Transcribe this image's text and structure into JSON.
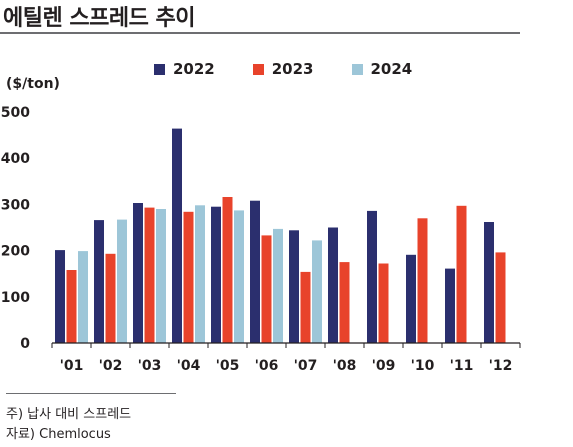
{
  "header": {
    "title": "에틸렌 스프레드 추이"
  },
  "chart_data": {
    "type": "bar",
    "ylabel": "($/ton)",
    "ylim": [
      0,
      500
    ],
    "yticks": [
      0,
      100,
      200,
      300,
      400,
      500
    ],
    "grid": false,
    "legend_position": "top",
    "categories": [
      "'01",
      "'02",
      "'03",
      "'04",
      "'05",
      "'06",
      "'07",
      "'08",
      "'09",
      "'10",
      "'11",
      "'12"
    ],
    "series": [
      {
        "name": "2022",
        "color": "#2b2f6e",
        "values": [
          201,
          266,
          303,
          464,
          295,
          308,
          244,
          250,
          286,
          191,
          161,
          262
        ]
      },
      {
        "name": "2023",
        "color": "#e8432b",
        "values": [
          158,
          193,
          293,
          284,
          316,
          233,
          154,
          175,
          172,
          270,
          297,
          196
        ]
      },
      {
        "name": "2024",
        "color": "#9dc6d8",
        "values": [
          199,
          267,
          290,
          298,
          287,
          247,
          222,
          null,
          null,
          null,
          null,
          null
        ]
      }
    ]
  },
  "footnotes": {
    "note": "주) 납사 대비 스프레드",
    "source": "자료) Chemlocus"
  }
}
